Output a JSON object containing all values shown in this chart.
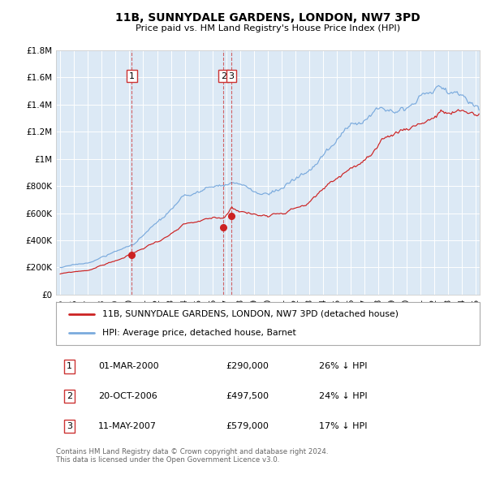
{
  "title": "11B, SUNNYDALE GARDENS, LONDON, NW7 3PD",
  "subtitle": "Price paid vs. HM Land Registry's House Price Index (HPI)",
  "bg_color": "#dce9f5",
  "red_color": "#cc2222",
  "blue_color": "#7aaadd",
  "ylim": [
    0,
    1800000
  ],
  "yticks": [
    0,
    200000,
    400000,
    600000,
    800000,
    1000000,
    1200000,
    1400000,
    1600000,
    1800000
  ],
  "ytick_labels": [
    "£0",
    "£200K",
    "£400K",
    "£600K",
    "£800K",
    "£1M",
    "£1.2M",
    "£1.4M",
    "£1.6M",
    "£1.8M"
  ],
  "xmin": 1994.7,
  "xmax": 2025.3,
  "xticks": [
    1995,
    1996,
    1997,
    1998,
    1999,
    2000,
    2001,
    2002,
    2003,
    2004,
    2005,
    2006,
    2007,
    2008,
    2009,
    2010,
    2011,
    2012,
    2013,
    2014,
    2015,
    2016,
    2017,
    2018,
    2019,
    2020,
    2021,
    2022,
    2023,
    2024,
    2025
  ],
  "transactions": [
    {
      "date": 2000.17,
      "price": 290000,
      "label": "1",
      "hpi_pct": "26% ↓ HPI",
      "date_str": "01-MAR-2000",
      "price_str": "£290,000"
    },
    {
      "date": 2006.8,
      "price": 497500,
      "label": "2",
      "hpi_pct": "24% ↓ HPI",
      "date_str": "20-OCT-2006",
      "price_str": "£497,500"
    },
    {
      "date": 2007.37,
      "price": 579000,
      "label": "3",
      "hpi_pct": "17% ↓ HPI",
      "date_str": "11-MAY-2007",
      "price_str": "£579,000"
    }
  ],
  "legend_entries": [
    "11B, SUNNYDALE GARDENS, LONDON, NW7 3PD (detached house)",
    "HPI: Average price, detached house, Barnet"
  ],
  "footer": "Contains HM Land Registry data © Crown copyright and database right 2024.\nThis data is licensed under the Open Government Licence v3.0."
}
